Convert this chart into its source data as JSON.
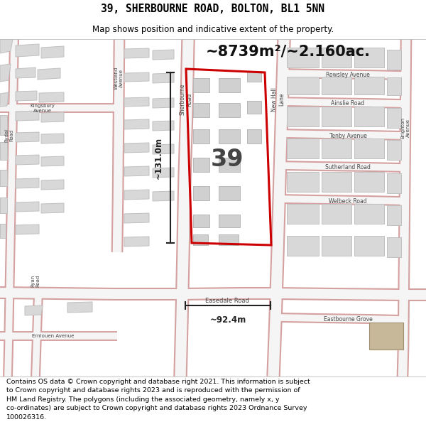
{
  "title": "39, SHERBOURNE ROAD, BOLTON, BL1 5NN",
  "subtitle": "Map shows position and indicative extent of the property.",
  "area_text": "~8739m²/~2.160ac.",
  "width_label": "~92.4m",
  "height_label": "~131.0m",
  "property_number": "39",
  "footer_text": "Contains OS data © Crown copyright and database right 2021. This information is subject to Crown copyright and database rights 2023 and is reproduced with the permission of HM Land Registry. The polygons (including the associated geometry, namely x, y co-ordinates) are subject to Crown copyright and database rights 2023 Ordnance Survey 100026316.",
  "map_bg": "#f2f2f0",
  "road_fill": "#f5f5f5",
  "road_edge": "#d4a0a0",
  "building_fill": "#d8d8d8",
  "building_edge": "#c0c0c0",
  "highlight_color": "#cc0000",
  "dim_color": "#222222",
  "text_color": "#000000",
  "white": "#ffffff",
  "tan_fill": "#c8b89a"
}
